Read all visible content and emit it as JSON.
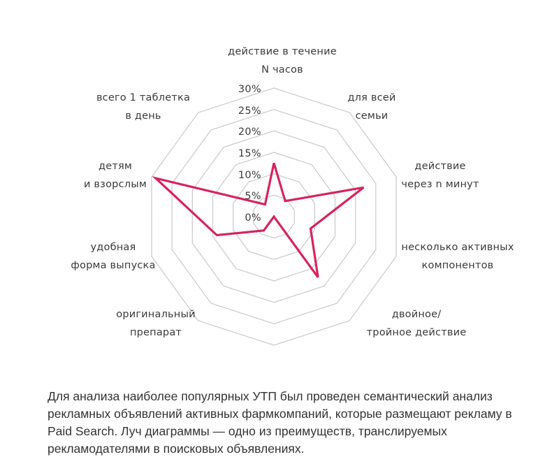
{
  "chart_data": {
    "type": "radar",
    "title": "",
    "axes": [
      {
        "label_lines": [
          "действие в течение",
          "N часов"
        ],
        "value": 12.5
      },
      {
        "label_lines": [
          "для всей",
          "семьи"
        ],
        "value": 4.5
      },
      {
        "label_lines": [
          "действие",
          "через n минут"
        ],
        "value": 22
      },
      {
        "label_lines": [
          "несколько активных",
          "компонентов"
        ],
        "value": 9
      },
      {
        "label_lines": [
          "двойное/",
          "тройное действие"
        ],
        "value": 17.5
      },
      {
        "label_lines": [],
        "value": 0
      },
      {
        "label_lines": [
          "оригинальный",
          "препарат"
        ],
        "value": 4
      },
      {
        "label_lines": [
          "удобная",
          "форма выпуска"
        ],
        "value": 14
      },
      {
        "label_lines": [
          "детям",
          "и взорслым"
        ],
        "value": 29
      },
      {
        "label_lines": [
          "всего 1 таблетка",
          "в день"
        ],
        "value": 3.5
      }
    ],
    "categories": [
      "действие в течение N часов",
      "для всей семьи",
      "действие через n минут",
      "несколько активных компонентов",
      "двойное/тройное действие",
      "",
      "оригинальный препарат",
      "удобная форма выпуска",
      "детям и взорслым",
      "всего 1 таблетка в день"
    ],
    "series": [
      {
        "name": "УТП",
        "values": [
          12.5,
          4.5,
          22,
          9,
          17.5,
          0,
          4,
          14,
          29,
          3.5
        ],
        "color": "#d6245f"
      }
    ],
    "ticks": [
      "0%",
      "5%",
      "10%",
      "15%",
      "20%",
      "25%",
      "30%"
    ],
    "rlim": [
      0,
      30
    ],
    "grid": true,
    "grid_color": "#c9c9c9",
    "legend": "none"
  },
  "caption": "Для анализа наиболее популярных УТП был проведен семантический анализ рекламных объявлений активных фармкомпаний, которые размещают рекламу в Paid Search.  Луч диаграммы — одно из преимуществ, транслируемых рекламодателями в поисковых объявлениях."
}
